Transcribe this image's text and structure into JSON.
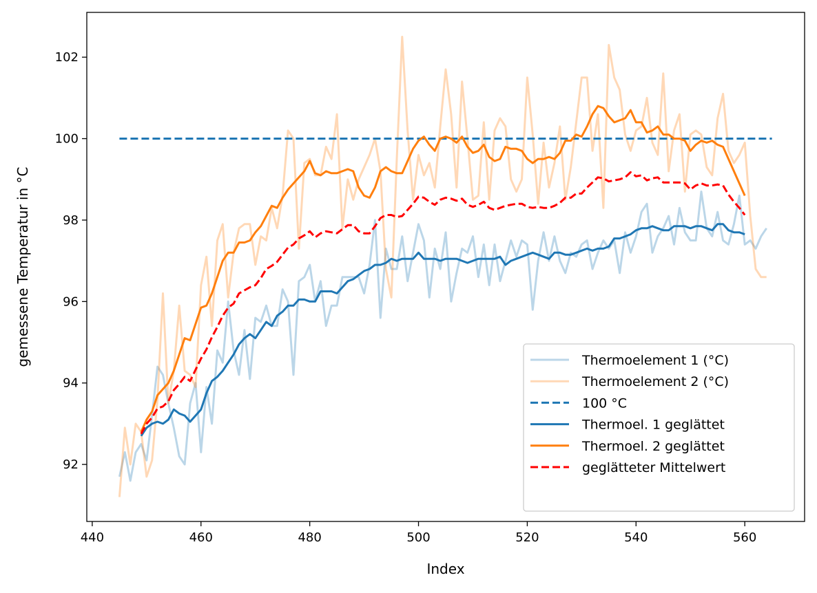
{
  "chart_data": {
    "type": "line",
    "title": "",
    "xlabel": "Index",
    "ylabel": "gemessene Temperatur in °C",
    "xlim": [
      439,
      571
    ],
    "ylim": [
      90.6,
      103.1
    ],
    "xticks": [
      440,
      460,
      480,
      500,
      520,
      540,
      560
    ],
    "yticks": [
      92,
      94,
      96,
      98,
      100,
      102
    ],
    "grid": false,
    "legend_position": "lower-right",
    "series": [
      {
        "name": "Thermoelement 1 (°C)",
        "color": "#1f77b4",
        "alpha": 0.3,
        "style": "solid",
        "x_start": 445,
        "values": [
          91.7,
          92.3,
          91.6,
          92.3,
          92.5,
          92.1,
          93.2,
          94.4,
          94.2,
          93.5,
          92.9,
          92.2,
          92.0,
          93.5,
          94.0,
          92.3,
          93.9,
          93.0,
          94.8,
          94.5,
          96.0,
          94.8,
          94.2,
          95.3,
          94.1,
          95.6,
          95.5,
          95.9,
          95.4,
          95.4,
          96.3,
          96.0,
          94.2,
          96.5,
          96.6,
          96.9,
          96.0,
          96.5,
          95.4,
          95.9,
          95.9,
          96.6,
          96.6,
          96.6,
          96.6,
          96.2,
          96.9,
          98.0,
          95.6,
          97.3,
          96.8,
          96.8,
          97.6,
          96.5,
          97.2,
          97.9,
          97.5,
          96.1,
          97.3,
          96.8,
          97.7,
          96.0,
          96.7,
          97.3,
          97.2,
          97.6,
          96.6,
          97.4,
          96.4,
          97.4,
          96.5,
          97.0,
          97.5,
          97.1,
          97.5,
          97.4,
          95.8,
          97.0,
          97.7,
          97.0,
          97.6,
          97.0,
          96.7,
          97.2,
          97.1,
          97.4,
          97.5,
          96.8,
          97.2,
          97.5,
          97.3,
          97.5,
          96.7,
          97.7,
          97.2,
          97.6,
          98.2,
          98.4,
          97.2,
          97.6,
          97.8,
          98.1,
          97.4,
          98.3,
          97.7,
          97.5,
          97.5,
          98.7,
          97.8,
          97.6,
          98.2,
          97.5,
          97.4,
          97.9,
          98.6,
          97.4,
          97.5,
          97.3,
          97.6,
          97.8
        ]
      },
      {
        "name": "Thermoelement 2 (°C)",
        "color": "#ff7f0e",
        "alpha": 0.3,
        "style": "solid",
        "x_start": 445,
        "values": [
          91.2,
          92.9,
          92.0,
          93.0,
          92.8,
          91.7,
          92.1,
          93.6,
          96.2,
          93.5,
          94.3,
          95.9,
          94.3,
          94.2,
          93.9,
          96.4,
          97.1,
          95.4,
          97.5,
          97.9,
          96.1,
          97.2,
          97.8,
          97.9,
          97.9,
          96.9,
          97.6,
          97.5,
          98.3,
          97.8,
          98.6,
          100.2,
          100.0,
          97.3,
          99.4,
          99.5,
          99.1,
          99.1,
          99.8,
          99.5,
          100.6,
          97.8,
          99.0,
          98.5,
          99.0,
          99.3,
          99.6,
          100.0,
          99.2,
          96.8,
          96.1,
          99.5,
          102.5,
          100.2,
          98.5,
          99.6,
          99.1,
          99.4,
          98.8,
          100.3,
          101.7,
          100.6,
          98.8,
          101.4,
          100.0,
          98.5,
          98.6,
          100.4,
          98.5,
          100.2,
          100.5,
          100.3,
          99.0,
          98.7,
          99.0,
          101.5,
          100.1,
          98.4,
          99.9,
          98.8,
          99.4,
          100.3,
          98.5,
          99.3,
          100.4,
          101.5,
          101.5,
          99.7,
          100.6,
          98.3,
          102.3,
          101.5,
          101.2,
          100.1,
          99.7,
          100.2,
          100.3,
          101.0,
          99.9,
          99.6,
          101.6,
          99.2,
          100.2,
          100.6,
          98.7,
          100.1,
          100.2,
          100.1,
          99.3,
          99.1,
          100.5,
          101.1,
          99.7,
          99.4,
          99.6,
          99.9,
          98.1,
          96.8,
          96.6,
          96.6
        ]
      },
      {
        "name": "100 °C",
        "color": "#1f77b4",
        "alpha": 1,
        "style": "dashed",
        "x": [
          445,
          565
        ],
        "values": [
          100,
          100
        ]
      },
      {
        "name": "Thermoel. 1 geglättet",
        "color": "#1f77b4",
        "alpha": 1,
        "style": "solid",
        "x_start": 449,
        "values": [
          92.7,
          92.9,
          93.0,
          93.05,
          93.0,
          93.1,
          93.35,
          93.25,
          93.2,
          93.05,
          93.2,
          93.35,
          93.75,
          94.05,
          94.15,
          94.3,
          94.5,
          94.7,
          94.95,
          95.1,
          95.2,
          95.1,
          95.3,
          95.5,
          95.4,
          95.65,
          95.75,
          95.9,
          95.9,
          96.05,
          96.05,
          96.0,
          96.0,
          96.25,
          96.25,
          96.25,
          96.2,
          96.35,
          96.5,
          96.55,
          96.65,
          96.75,
          96.8,
          96.9,
          96.9,
          96.95,
          97.05,
          97.0,
          97.05,
          97.05,
          97.05,
          97.2,
          97.05,
          97.05,
          97.05,
          97.0,
          97.05,
          97.05,
          97.05,
          97.0,
          96.95,
          97.0,
          97.05,
          97.05,
          97.05,
          97.05,
          97.1,
          96.9,
          97.0,
          97.05,
          97.1,
          97.15,
          97.2,
          97.15,
          97.1,
          97.05,
          97.2,
          97.2,
          97.15,
          97.15,
          97.2,
          97.25,
          97.3,
          97.25,
          97.3,
          97.3,
          97.35,
          97.55,
          97.55,
          97.6,
          97.65,
          97.75,
          97.8,
          97.8,
          97.85,
          97.8,
          97.75,
          97.75,
          97.85,
          97.85,
          97.85,
          97.8,
          97.85,
          97.85,
          97.8,
          97.75,
          97.9,
          97.9,
          97.75,
          97.7,
          97.7,
          97.65
        ]
      },
      {
        "name": "Thermoel. 2 geglättet",
        "color": "#ff7f0e",
        "alpha": 1,
        "style": "solid",
        "x_start": 449,
        "values": [
          92.8,
          93.1,
          93.3,
          93.7,
          93.85,
          94.0,
          94.3,
          94.7,
          95.1,
          95.05,
          95.45,
          95.85,
          95.9,
          96.2,
          96.6,
          97.0,
          97.2,
          97.2,
          97.45,
          97.45,
          97.5,
          97.7,
          97.85,
          98.1,
          98.35,
          98.3,
          98.55,
          98.75,
          98.9,
          99.05,
          99.2,
          99.45,
          99.15,
          99.1,
          99.2,
          99.15,
          99.15,
          99.2,
          99.25,
          99.2,
          98.8,
          98.6,
          98.55,
          98.8,
          99.2,
          99.3,
          99.2,
          99.15,
          99.15,
          99.45,
          99.75,
          99.95,
          100.05,
          99.85,
          99.7,
          100.0,
          100.05,
          100.0,
          99.9,
          100.05,
          99.8,
          99.65,
          99.7,
          99.85,
          99.55,
          99.45,
          99.5,
          99.8,
          99.75,
          99.75,
          99.7,
          99.5,
          99.4,
          99.5,
          99.5,
          99.55,
          99.5,
          99.65,
          99.95,
          99.95,
          100.1,
          100.05,
          100.3,
          100.6,
          100.8,
          100.75,
          100.55,
          100.4,
          100.45,
          100.5,
          100.7,
          100.4,
          100.4,
          100.15,
          100.2,
          100.3,
          100.1,
          100.1,
          100.0,
          100.0,
          99.95,
          99.7,
          99.85,
          99.95,
          99.9,
          99.95,
          99.85,
          99.8,
          99.5,
          99.2,
          98.9,
          98.6
        ]
      },
      {
        "name": "geglätteter Mittelwert",
        "color": "#ff0000",
        "alpha": 1,
        "style": "dashed",
        "x_start": 449,
        "mean_of": [
          3,
          4
        ]
      }
    ]
  }
}
